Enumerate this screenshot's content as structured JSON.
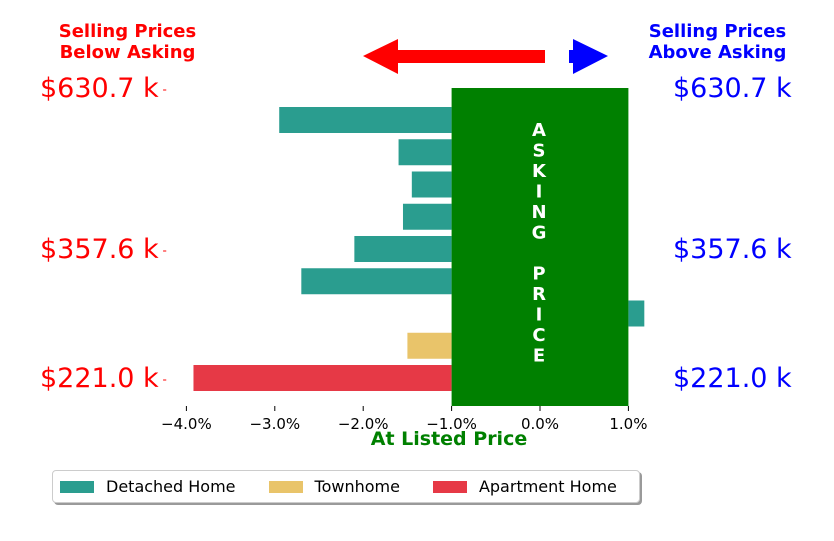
{
  "header": {
    "left_line1": "Selling Prices",
    "left_line2": "Below Asking",
    "right_line1": "Selling Prices",
    "right_line2": "Above Asking"
  },
  "price_labels": {
    "top": "$630.7 k",
    "middle": "$357.6 k",
    "bottom": "$221.0 k"
  },
  "asking_text": "ASKING PRICE",
  "colors": {
    "detached": "#2a9d8f",
    "townhome": "#e9c46a",
    "apartment": "#e63946",
    "asking_box": "#008000",
    "below": "#ff0000",
    "above": "#0000ff"
  },
  "chart_data": {
    "type": "bar",
    "orientation": "horizontal",
    "xlabel": "At Listed Price",
    "xlim": [
      -4.5,
      1.2
    ],
    "xticks": [
      -4.0,
      -3.0,
      -2.0,
      -1.0,
      0.0,
      1.0
    ],
    "xtick_labels": [
      "−4.0%",
      "−3.0%",
      "−2.0%",
      "−1.0%",
      "0.0%",
      "1.0%"
    ],
    "bars": [
      {
        "category": "Detached Home",
        "value": -2.95
      },
      {
        "category": "Detached Home",
        "value": -1.6
      },
      {
        "category": "Detached Home",
        "value": -1.45
      },
      {
        "category": "Detached Home",
        "value": -1.55
      },
      {
        "category": "Detached Home",
        "value": -2.1
      },
      {
        "category": "Detached Home",
        "value": -2.7
      },
      {
        "category": "Detached Home",
        "value": 1.18
      },
      {
        "category": "Townhome",
        "value": -1.5
      },
      {
        "category": "Apartment Home",
        "value": -3.92
      }
    ],
    "legend": [
      {
        "label": "Detached Home",
        "color": "#2a9d8f"
      },
      {
        "label": "Townhome",
        "color": "#e9c46a"
      },
      {
        "label": "Apartment Home",
        "color": "#e63946"
      }
    ],
    "legend_position": "bottom"
  }
}
